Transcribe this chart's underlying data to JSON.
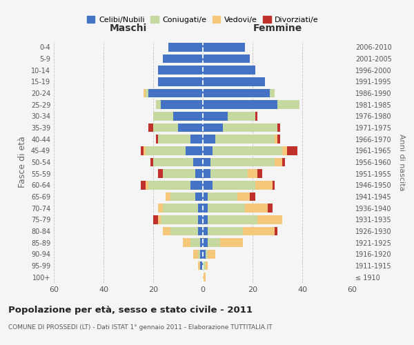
{
  "age_groups": [
    "100+",
    "95-99",
    "90-94",
    "85-89",
    "80-84",
    "75-79",
    "70-74",
    "65-69",
    "60-64",
    "55-59",
    "50-54",
    "45-49",
    "40-44",
    "35-39",
    "30-34",
    "25-29",
    "20-24",
    "15-19",
    "10-14",
    "5-9",
    "0-4"
  ],
  "birth_years": [
    "≤ 1910",
    "1911-1915",
    "1916-1920",
    "1921-1925",
    "1926-1930",
    "1931-1935",
    "1936-1940",
    "1941-1945",
    "1946-1950",
    "1951-1955",
    "1956-1960",
    "1961-1965",
    "1966-1970",
    "1971-1975",
    "1976-1980",
    "1981-1985",
    "1986-1990",
    "1991-1995",
    "1996-2000",
    "2001-2005",
    "2006-2010"
  ],
  "colors": {
    "celibi": "#4472c4",
    "coniugati": "#c5d9a0",
    "vedovi": "#f5c77a",
    "divorziati": "#c0312b"
  },
  "males": {
    "celibi": [
      0,
      1,
      1,
      1,
      2,
      2,
      2,
      3,
      5,
      3,
      4,
      7,
      5,
      10,
      12,
      17,
      22,
      18,
      18,
      16,
      14
    ],
    "coniugati": [
      0,
      0,
      1,
      4,
      11,
      15,
      14,
      10,
      17,
      13,
      16,
      16,
      13,
      10,
      8,
      2,
      1,
      0,
      0,
      0,
      0
    ],
    "vedovi": [
      0,
      1,
      2,
      3,
      3,
      1,
      2,
      2,
      1,
      0,
      0,
      1,
      0,
      0,
      0,
      0,
      1,
      0,
      0,
      0,
      0
    ],
    "divorziati": [
      0,
      0,
      0,
      0,
      0,
      2,
      0,
      0,
      2,
      2,
      1,
      1,
      1,
      2,
      0,
      0,
      0,
      0,
      0,
      0,
      0
    ]
  },
  "females": {
    "celibi": [
      0,
      0,
      1,
      2,
      2,
      2,
      2,
      2,
      4,
      3,
      3,
      4,
      5,
      8,
      10,
      30,
      27,
      25,
      21,
      19,
      17
    ],
    "coniugati": [
      0,
      1,
      1,
      5,
      14,
      20,
      15,
      12,
      17,
      15,
      26,
      28,
      24,
      22,
      11,
      9,
      2,
      0,
      0,
      0,
      0
    ],
    "vedovi": [
      1,
      1,
      3,
      9,
      13,
      10,
      9,
      5,
      7,
      4,
      3,
      2,
      1,
      0,
      0,
      0,
      0,
      0,
      0,
      0,
      0
    ],
    "divorziati": [
      0,
      0,
      0,
      0,
      1,
      0,
      2,
      2,
      1,
      2,
      1,
      4,
      1,
      1,
      1,
      0,
      0,
      0,
      0,
      0,
      0
    ]
  },
  "xlim": 60,
  "title": "Popolazione per età, sesso e stato civile - 2011",
  "subtitle": "COMUNE DI PROSSEDI (LT) - Dati ISTAT 1° gennaio 2011 - Elaborazione TUTTITALIA.IT",
  "ylabel_left": "Fasce di età",
  "ylabel_right": "Anni di nascita",
  "xlabel_maschi": "Maschi",
  "xlabel_femmine": "Femmine",
  "legend_labels": [
    "Celibi/Nubili",
    "Coniugati/e",
    "Vedovi/e",
    "Divorziati/e"
  ],
  "background_color": "#f5f5f5"
}
